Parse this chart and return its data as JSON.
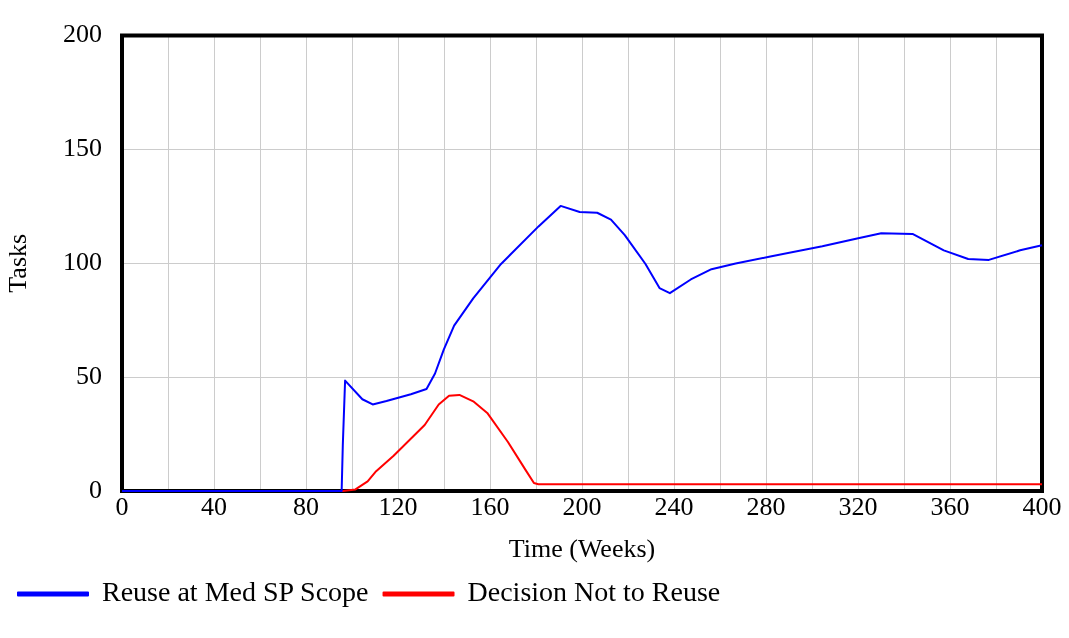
{
  "chart_data": {
    "type": "line",
    "xlabel": "Time (Weeks)",
    "ylabel": "Tasks",
    "xlim": [
      0,
      400
    ],
    "ylim": [
      0,
      200
    ],
    "xticks": [
      0,
      {
        "value": 20,
        "label": null
      },
      40,
      {
        "value": 60,
        "label": null
      },
      80,
      {
        "value": 100,
        "label": null
      },
      120,
      {
        "value": 140,
        "label": null
      },
      160,
      {
        "value": 180,
        "label": null
      },
      200,
      {
        "value": 220,
        "label": null
      },
      240,
      {
        "value": 260,
        "label": null
      },
      280,
      {
        "value": 300,
        "label": null
      },
      320,
      {
        "value": 340,
        "label": null
      },
      360,
      {
        "value": 380,
        "label": null
      },
      400
    ],
    "yticks": [
      0,
      50,
      100,
      150,
      200
    ],
    "grid": true,
    "legend": "bottom",
    "line_style": "solid",
    "series": [
      {
        "name": "Reuse at Med SP Scope",
        "color": "#0000ff",
        "x": [
          0,
          95.5,
          96,
          97,
          104.5,
          109,
          115,
          125.6,
          132.4,
          136.1,
          139.9,
          144.4,
          152.7,
          164.8,
          181.1,
          190.7,
          199,
          206.6,
          212.6,
          218.6,
          227.6,
          233.7,
          238.2,
          247.3,
          256.3,
          266.8,
          281.9,
          304.5,
          319.6,
          330.1,
          343.7,
          357.3,
          367.9,
          376.9,
          390.5,
          400
        ],
        "values": [
          0,
          0,
          20,
          48.5,
          40.3,
          38,
          39.5,
          42.5,
          44.8,
          51.6,
          62.1,
          72.6,
          84.6,
          99.7,
          116.2,
          125.2,
          122.5,
          122.2,
          119.2,
          112.4,
          99.7,
          89.1,
          86.9,
          92.9,
          97.4,
          99.9,
          103,
          107.5,
          110.9,
          113.2,
          112.9,
          105.7,
          101.9,
          101.5,
          105.7,
          107.9
        ]
      },
      {
        "name": "Decision Not to Reuse",
        "color": "#ff0000",
        "x": [
          0,
          96,
          101.5,
          106.8,
          110.5,
          118.1,
          131.6,
          137.7,
          142.2,
          146.7,
          152.7,
          158.8,
          167.8,
          175.3,
          179.1,
          181,
          400
        ],
        "values": [
          0,
          0,
          0.7,
          4.2,
          8.7,
          15.5,
          29,
          38,
          41.8,
          42.2,
          39.4,
          34.3,
          21.5,
          9.5,
          3.5,
          3,
          3
        ]
      }
    ]
  }
}
